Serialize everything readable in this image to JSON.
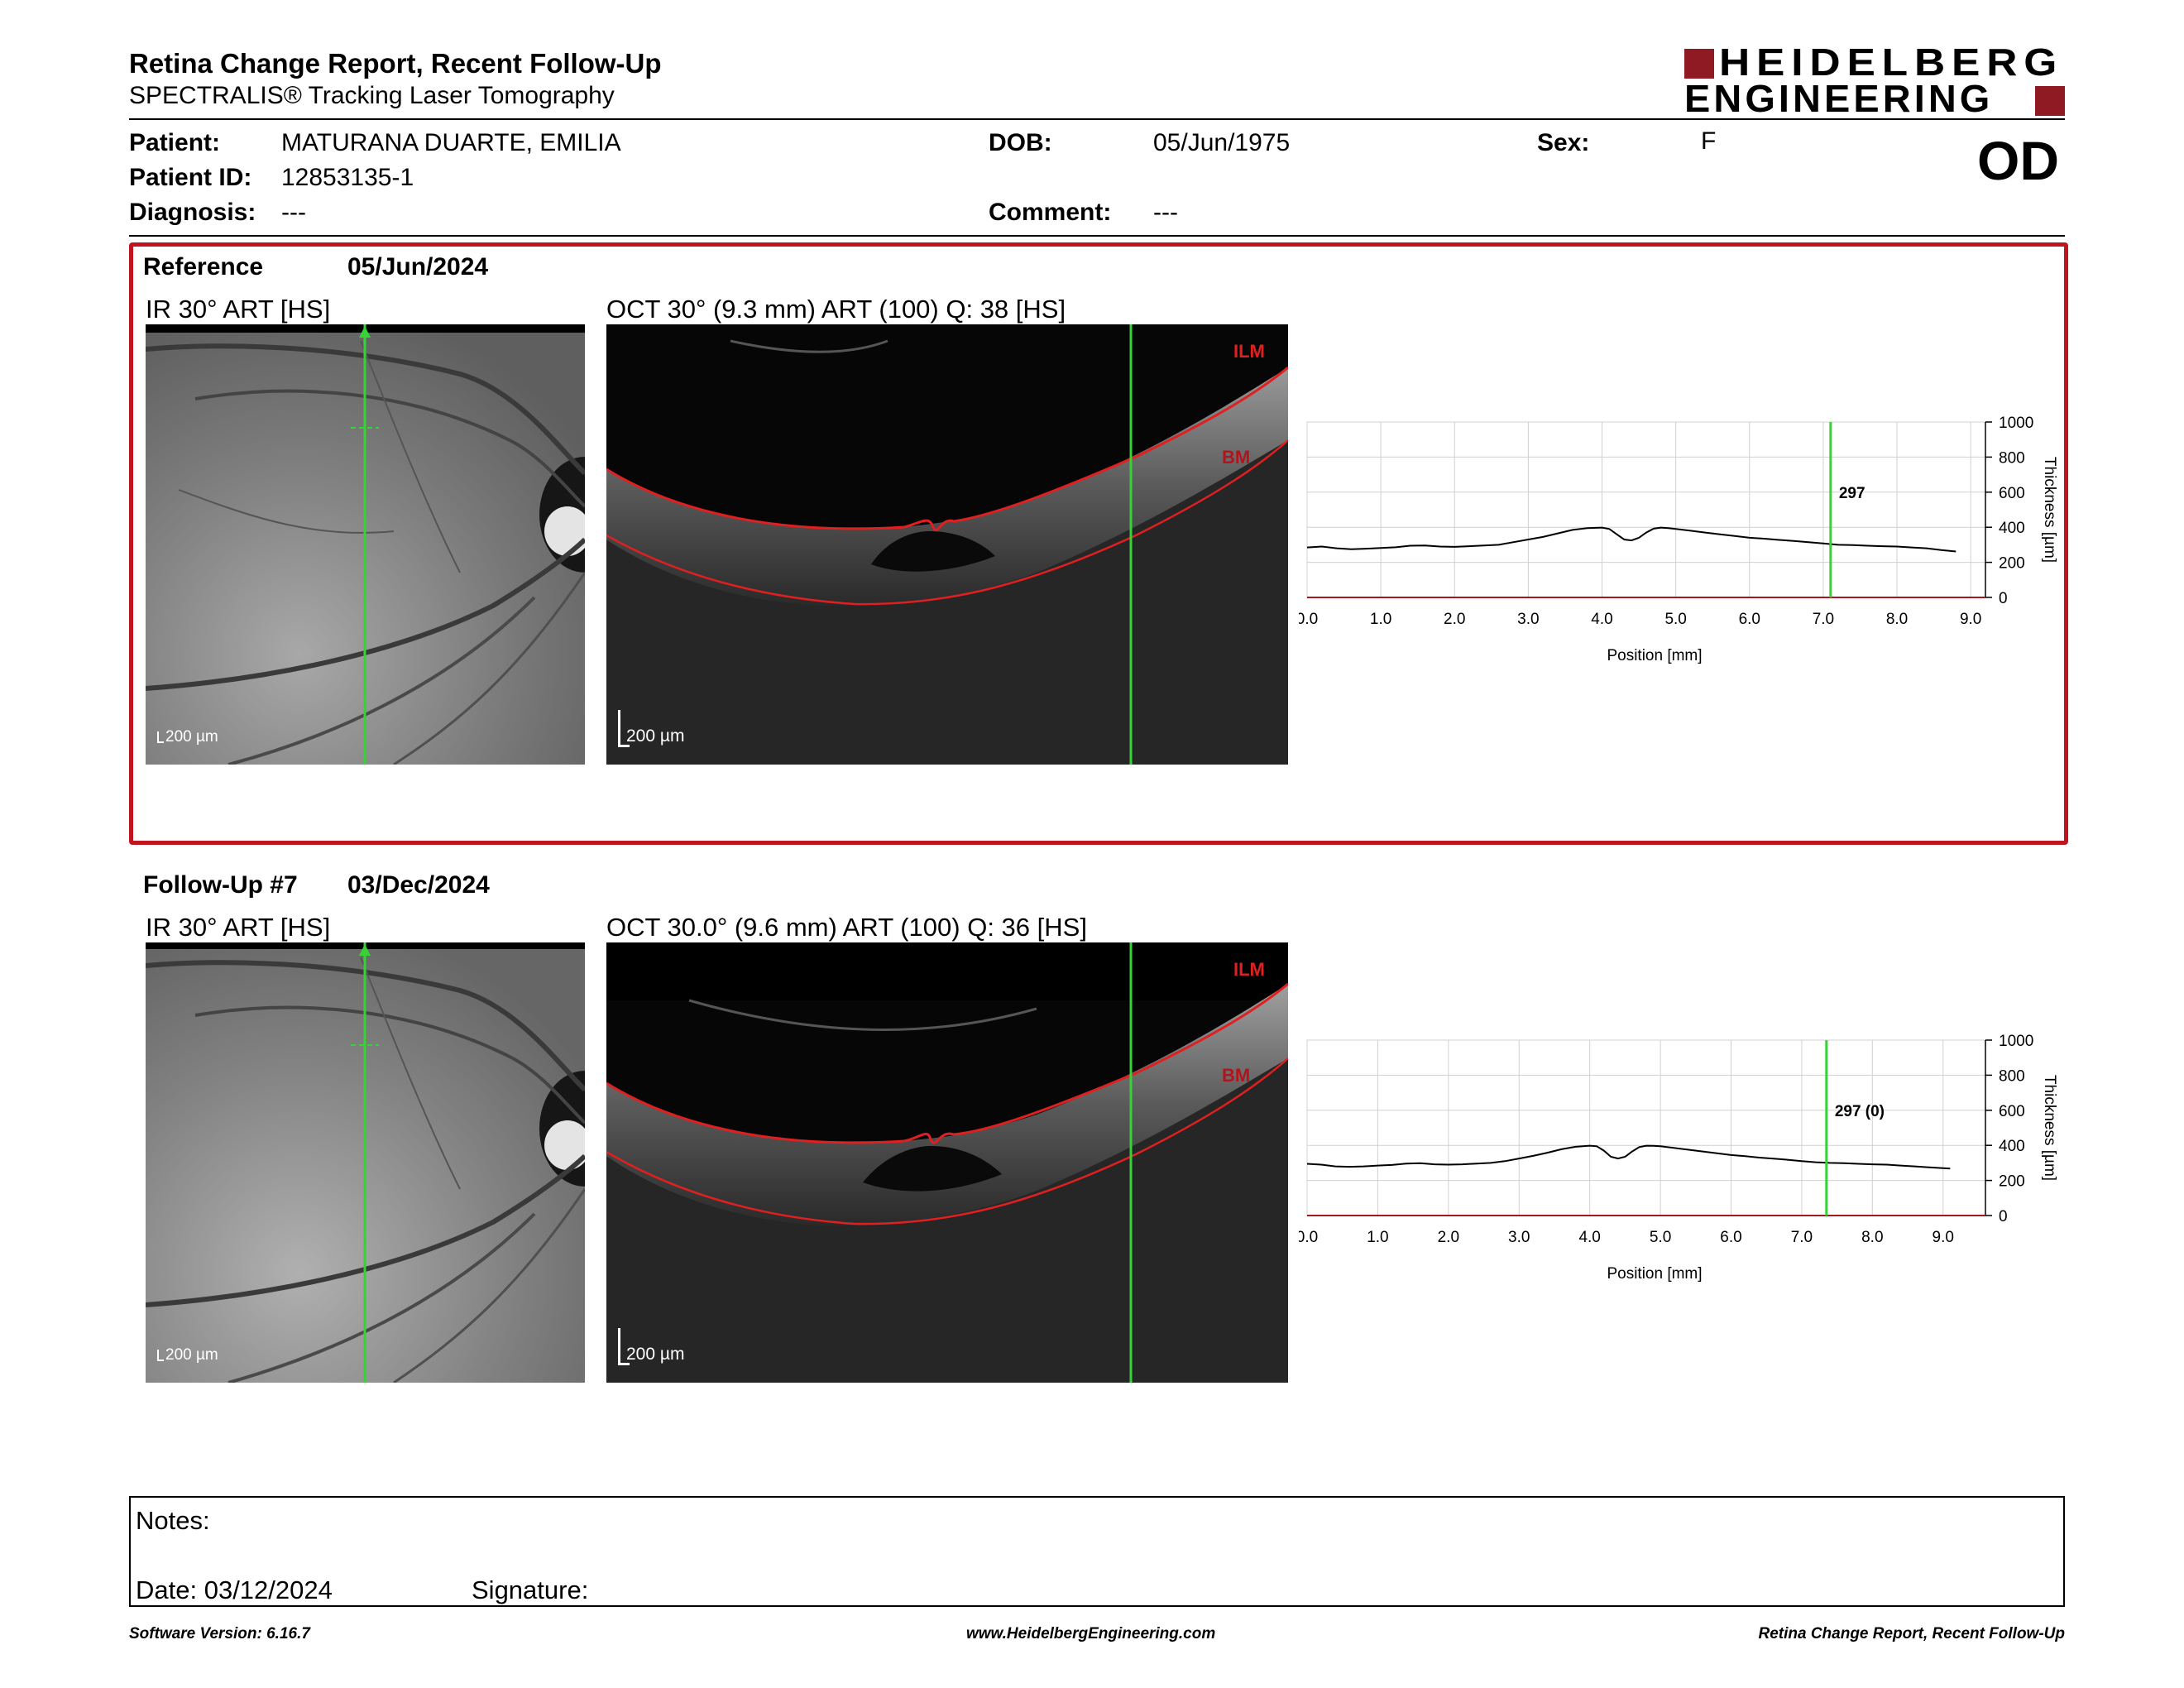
{
  "header": {
    "title": "Retina Change Report, Recent Follow-Up",
    "subtitle": "SPECTRALIS® Tracking Laser Tomography",
    "logo_line1": "HEIDELBERG",
    "logo_line2": "ENGINEERING"
  },
  "patient": {
    "name_label": "Patient:",
    "name": "MATURANA DUARTE, EMILIA",
    "id_label": "Patient ID:",
    "id": "12853135-1",
    "diagnosis_label": "Diagnosis:",
    "diagnosis": "---",
    "dob_label": "DOB:",
    "dob": "05/Jun/1975",
    "comment_label": "Comment:",
    "comment": "---",
    "sex_label": "Sex:",
    "sex": "F",
    "eye": "OD"
  },
  "reference": {
    "label": "Reference",
    "date": "05/Jun/2024",
    "ir_caption": "IR 30° ART [HS]",
    "oct_caption": "OCT 30° (9.3 mm) ART (100) Q: 38 [HS]",
    "ir_scale": "200 µm",
    "oct_scale": "200 µm",
    "ilm_label": "ILM",
    "bm_label": "BM"
  },
  "followup": {
    "label": "Follow-Up #7",
    "date": "03/Dec/2024",
    "ir_caption": "IR 30° ART [HS]",
    "oct_caption": "OCT 30.0° (9.6 mm) ART (100) Q: 36 [HS]",
    "ir_scale": "200 µm",
    "oct_scale": "200 µm",
    "ilm_label": "ILM",
    "bm_label": "BM"
  },
  "chart_data": [
    {
      "type": "line",
      "xlabel": "Position [mm]",
      "ylabel": "Thickness [µm]",
      "xlim": [
        0,
        9.2
      ],
      "ylim": [
        0,
        1000
      ],
      "xticks": [
        "0.0",
        "1.0",
        "2.0",
        "3.0",
        "4.0",
        "5.0",
        "6.0",
        "7.0",
        "8.0",
        "9.0"
      ],
      "yticks": [
        "0",
        "200",
        "400",
        "600",
        "800",
        "1000"
      ],
      "marker_x": 7.1,
      "marker_label": "297",
      "x": [
        0,
        0.2,
        0.4,
        0.6,
        0.8,
        1.0,
        1.2,
        1.4,
        1.6,
        1.8,
        2.0,
        2.2,
        2.4,
        2.6,
        2.8,
        3.0,
        3.2,
        3.4,
        3.6,
        3.8,
        4.0,
        4.1,
        4.2,
        4.3,
        4.4,
        4.5,
        4.6,
        4.7,
        4.8,
        4.9,
        5.0,
        5.2,
        5.4,
        5.6,
        5.8,
        6.0,
        6.2,
        6.4,
        6.6,
        6.8,
        7.0,
        7.2,
        7.4,
        7.6,
        7.8,
        8.0,
        8.2,
        8.4,
        8.6,
        8.8
      ],
      "y": [
        285,
        290,
        280,
        275,
        278,
        282,
        286,
        295,
        296,
        290,
        288,
        292,
        296,
        300,
        315,
        330,
        345,
        365,
        385,
        395,
        398,
        390,
        360,
        330,
        325,
        340,
        370,
        392,
        398,
        395,
        390,
        380,
        370,
        360,
        350,
        340,
        335,
        328,
        322,
        315,
        308,
        300,
        298,
        295,
        292,
        290,
        285,
        280,
        270,
        262
      ]
    },
    {
      "type": "line",
      "xlabel": "Position [mm]",
      "ylabel": "Thickness [µm]",
      "xlim": [
        0,
        9.6
      ],
      "ylim": [
        0,
        1000
      ],
      "xticks": [
        "0.0",
        "1.0",
        "2.0",
        "3.0",
        "4.0",
        "5.0",
        "6.0",
        "7.0",
        "8.0",
        "9.0"
      ],
      "yticks": [
        "0",
        "200",
        "400",
        "600",
        "800",
        "1000"
      ],
      "marker_x": 7.35,
      "marker_label": "297 (0)",
      "x": [
        0,
        0.2,
        0.4,
        0.6,
        0.8,
        1.0,
        1.2,
        1.4,
        1.6,
        1.8,
        2.0,
        2.2,
        2.4,
        2.6,
        2.8,
        3.0,
        3.2,
        3.4,
        3.6,
        3.8,
        4.0,
        4.1,
        4.2,
        4.3,
        4.4,
        4.5,
        4.6,
        4.7,
        4.8,
        4.9,
        5.0,
        5.2,
        5.4,
        5.6,
        5.8,
        6.0,
        6.2,
        6.4,
        6.6,
        6.8,
        7.0,
        7.2,
        7.4,
        7.6,
        7.8,
        8.0,
        8.2,
        8.4,
        8.6,
        8.8,
        9.0,
        9.1
      ],
      "y": [
        295,
        290,
        280,
        278,
        280,
        285,
        288,
        296,
        298,
        292,
        290,
        292,
        296,
        300,
        310,
        325,
        340,
        358,
        378,
        392,
        398,
        395,
        370,
        335,
        325,
        335,
        365,
        390,
        398,
        397,
        395,
        385,
        375,
        365,
        355,
        345,
        338,
        330,
        324,
        318,
        310,
        304,
        300,
        298,
        295,
        292,
        290,
        285,
        280,
        275,
        270,
        268
      ]
    }
  ],
  "notes": {
    "notes_label": "Notes:",
    "date_label": "Date: 03/12/2024",
    "signature_label": "Signature:"
  },
  "footer": {
    "software": "Software Version: 6.16.7",
    "website": "www.HeidelbergEngineering.com",
    "report": "Retina Change Report, Recent Follow-Up"
  },
  "colors": {
    "accent": "#c0151e",
    "marker": "#35d335",
    "layer": "#e02020"
  }
}
